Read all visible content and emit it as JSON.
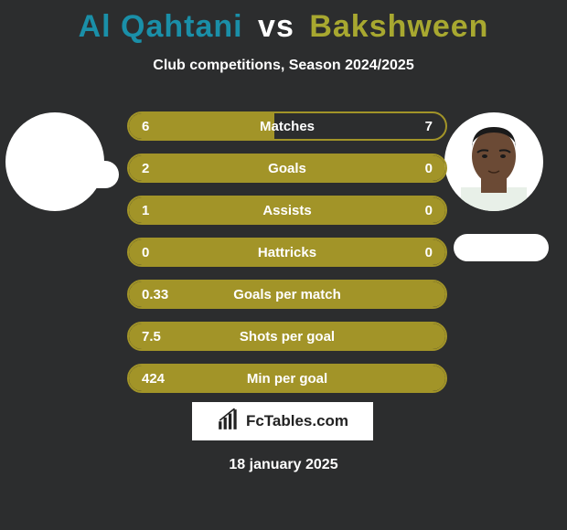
{
  "title": {
    "player1": "Al Qahtani",
    "vs": "vs",
    "player2": "Bakshween",
    "player1_color": "#1a8fa8",
    "player2_color": "#a8a830"
  },
  "subtitle": "Club competitions, Season 2024/2025",
  "background_color": "#2c2d2e",
  "rows": [
    {
      "left": "6",
      "label": "Matches",
      "right": "7",
      "fill_pct": 46,
      "fill_color": "#a29428",
      "border_color": "#a29428"
    },
    {
      "left": "2",
      "label": "Goals",
      "right": "0",
      "fill_pct": 100,
      "fill_color": "#a29428",
      "border_color": "#a29428"
    },
    {
      "left": "1",
      "label": "Assists",
      "right": "0",
      "fill_pct": 100,
      "fill_color": "#a29428",
      "border_color": "#a29428"
    },
    {
      "left": "0",
      "label": "Hattricks",
      "right": "0",
      "fill_pct": 100,
      "fill_color": "#a29428",
      "border_color": "#a29428"
    },
    {
      "left": "0.33",
      "label": "Goals per match",
      "right": "",
      "fill_pct": 100,
      "fill_color": "#a29428",
      "border_color": "#a29428"
    },
    {
      "left": "7.5",
      "label": "Shots per goal",
      "right": "",
      "fill_pct": 100,
      "fill_color": "#a29428",
      "border_color": "#a29428"
    },
    {
      "left": "424",
      "label": "Min per goal",
      "right": "",
      "fill_pct": 100,
      "fill_color": "#a29428",
      "border_color": "#a29428"
    }
  ],
  "watermark": "FcTables.com",
  "date": "18 january 2025",
  "avatar_right": {
    "skin": "#6b4a35",
    "hair": "#1a1a1a",
    "shirt": "#e8f0e8"
  }
}
